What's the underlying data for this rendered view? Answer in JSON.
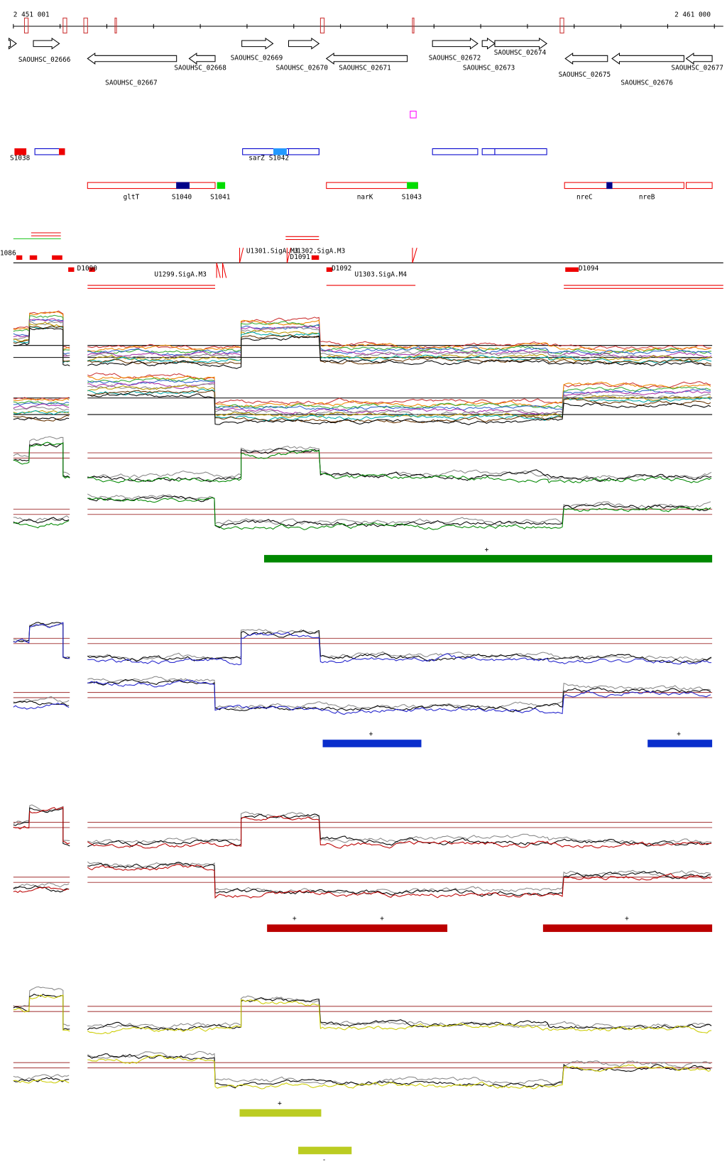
{
  "axis": {
    "start": "2 451 001",
    "end": "2 461 000"
  },
  "genes": [
    {
      "label": "SAOUHSC_02666"
    },
    {
      "label": "SAOUHSC_02667"
    },
    {
      "label": "SAOUHSC_02668"
    },
    {
      "label": "SAOUHSC_02669"
    },
    {
      "label": "SAOUHSC_02670"
    },
    {
      "label": "SAOUHSC_02671"
    },
    {
      "label": "SAOUHSC_02672"
    },
    {
      "label": "SAOUHSC_02673"
    },
    {
      "label": "SAOUHSC_02674"
    },
    {
      "label": "SAOUHSC_02675"
    },
    {
      "label": "SAOUHSC_02676"
    },
    {
      "label": "SAOUHSC_02677"
    }
  ],
  "features_top": [
    {
      "label": "S1038"
    },
    {
      "label": "sarZ"
    },
    {
      "label": "S1042"
    }
  ],
  "features_bottom": [
    {
      "label": "gltT"
    },
    {
      "label": "S1040"
    },
    {
      "label": "S1041"
    },
    {
      "label": "narK"
    },
    {
      "label": "S1043"
    },
    {
      "label": "nreC"
    },
    {
      "label": "nreB"
    }
  ],
  "transcripts": [
    {
      "label": "1086"
    },
    {
      "label": "D1090"
    },
    {
      "label": "U1299.SigA.M3"
    },
    {
      "label": "U1301.SigA.M3"
    },
    {
      "label": "U1302.SigA.M3"
    },
    {
      "label": "D1091"
    },
    {
      "label": "D1092"
    },
    {
      "label": "U1303.SigA.M4"
    },
    {
      "label": "D1094"
    }
  ],
  "strand_marks": [
    {
      "label": "+"
    },
    {
      "label": "+"
    },
    {
      "label": "+"
    },
    {
      "label": "+"
    },
    {
      "label": "+"
    },
    {
      "label": "+"
    },
    {
      "label": "+"
    },
    {
      "label": "-"
    }
  ]
}
